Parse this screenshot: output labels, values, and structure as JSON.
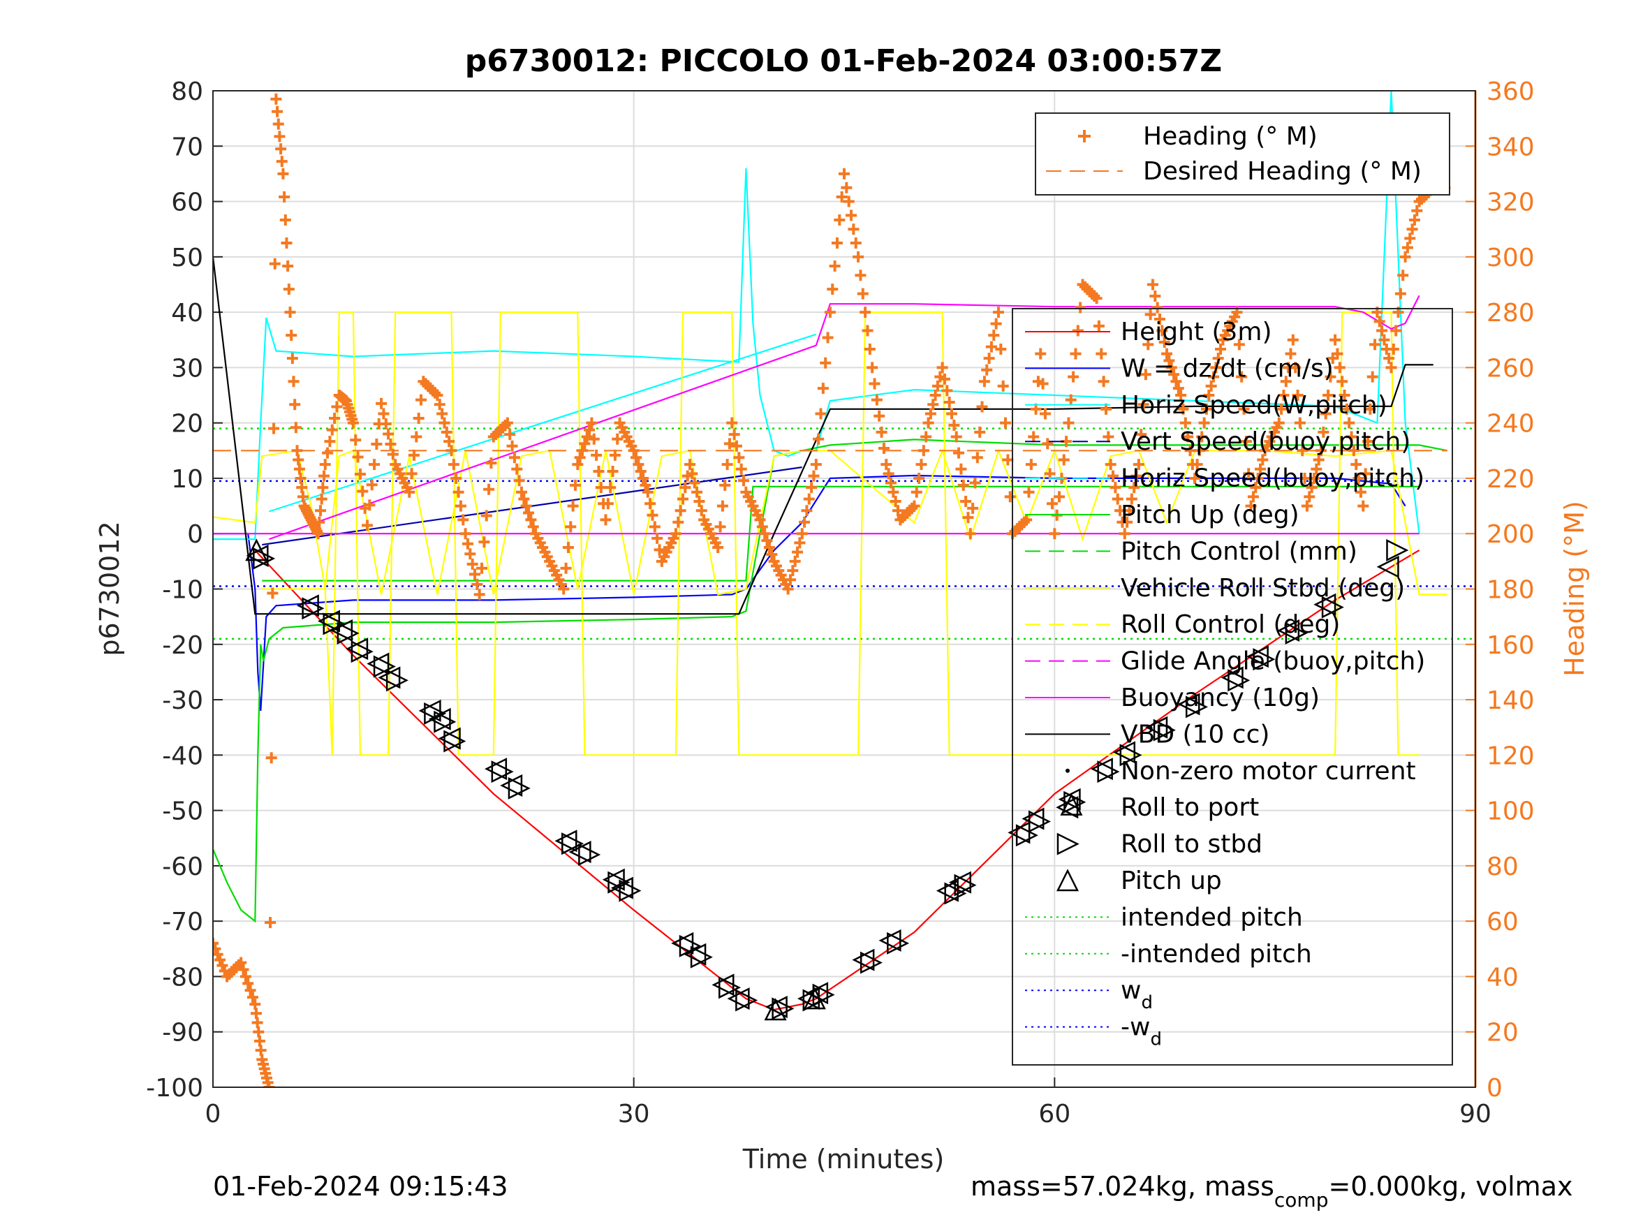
{
  "chart_data": {
    "type": "line",
    "title": "p6730012: PICCOLO 01-Feb-2024 03:00:57Z",
    "xlabel": "Time (minutes)",
    "ylabel_left": "p6730012",
    "ylabel_right": "Heading (°M)",
    "xlim": [
      0,
      90
    ],
    "ylim_left": [
      -100,
      80
    ],
    "ylim_right": [
      0,
      360
    ],
    "xticks": [
      "0",
      "30",
      "60",
      "90"
    ],
    "yticks_left": [
      "80",
      "70",
      "60",
      "50",
      "40",
      "30",
      "20",
      "10",
      "0",
      "-10",
      "-20",
      "-30",
      "-40",
      "-50",
      "-60",
      "-70",
      "-80",
      "-90",
      "-100"
    ],
    "yticks_right": [
      "360",
      "340",
      "320",
      "300",
      "280",
      "260",
      "240",
      "220",
      "200",
      "180",
      "160",
      "140",
      "120",
      "100",
      "80",
      "60",
      "40",
      "20",
      "0"
    ],
    "grid": true,
    "colors": {
      "orange": "#f47920",
      "red": "#ff0000",
      "blue": "#0000ff",
      "cyan": "#00ffff",
      "darkblue": "#0000aa",
      "green": "#00dd00",
      "yellow": "#ffff00",
      "magenta": "#ff00ff",
      "black": "#000000"
    },
    "legend_top": [
      {
        "label": "Heading (° M)",
        "color": "#f47920",
        "style": "plus"
      },
      {
        "label": "Desired Heading (° M)",
        "color": "#f47920",
        "style": "dash"
      }
    ],
    "legend_main": [
      {
        "label": "Height (3m)",
        "color": "#ff0000",
        "style": "solid"
      },
      {
        "label": "W = dz/dt (cm/s)",
        "color": "#0000ff",
        "style": "solid"
      },
      {
        "label": "Horiz Speed(W,pitch)",
        "color": "#00ffff",
        "style": "solid"
      },
      {
        "label": "Vert Speed(buoy,pitch)",
        "color": "#0000aa",
        "style": "dash"
      },
      {
        "label": "Horiz Speed(buoy,pitch)",
        "color": "#00ffff",
        "style": "dash"
      },
      {
        "label": "Pitch Up (deg)",
        "color": "#00dd00",
        "style": "solid"
      },
      {
        "label": "Pitch Control (mm)",
        "color": "#00dd00",
        "style": "dash"
      },
      {
        "label": "Vehicle Roll Stbd (deg)",
        "color": "#ffff00",
        "style": "solid"
      },
      {
        "label": "Roll Control (deg)",
        "color": "#ffff00",
        "style": "dash"
      },
      {
        "label": "Glide Angle (buoy,pitch)",
        "color": "#ff00ff",
        "style": "dash"
      },
      {
        "label": "Buoyancy (10g)",
        "color": "#ff00ff",
        "style": "solid"
      },
      {
        "label": "VBD (10 cc)",
        "color": "#000000",
        "style": "solid"
      },
      {
        "label": "Non-zero motor current",
        "color": "#000000",
        "style": "dot"
      },
      {
        "label": "Roll to port",
        "color": "#000000",
        "style": "tri-left"
      },
      {
        "label": "Roll to stbd",
        "color": "#000000",
        "style": "tri-right"
      },
      {
        "label": "Pitch up",
        "color": "#000000",
        "style": "tri-up"
      },
      {
        "label": "intended pitch",
        "color": "#00dd00",
        "style": "dotted"
      },
      {
        "label": "-intended pitch",
        "color": "#00dd00",
        "style": "dotted"
      },
      {
        "label": "w",
        "sub": "d",
        "color": "#0000ff",
        "style": "dotted"
      },
      {
        "label": "-w",
        "sub": "d",
        "color": "#0000ff",
        "style": "dotted"
      }
    ],
    "series": [
      {
        "name": "Height (3m)",
        "axis": "left",
        "color": "#ff0000",
        "x": [
          3,
          10,
          20,
          30,
          36,
          38,
          40,
          42,
          43,
          50,
          60,
          70,
          80,
          86
        ],
        "y": [
          -3,
          -22,
          -47,
          -68,
          -80,
          -84,
          -86,
          -85,
          -84,
          -72,
          -47,
          -29,
          -12,
          -3
        ]
      },
      {
        "name": "W = dz/dt (cm/s)",
        "axis": "left",
        "color": "#0000ff",
        "x": [
          0,
          2.5,
          3,
          3.2,
          3.4,
          3.8,
          4.5,
          10,
          20,
          30,
          37,
          38,
          40,
          42,
          44,
          50,
          60,
          70,
          80,
          84,
          85
        ],
        "y": [
          0,
          0,
          -10,
          -25,
          -32,
          -15,
          -13,
          -12,
          -12,
          -11.5,
          -11,
          -10,
          -3,
          2,
          10,
          10.5,
          10,
          10,
          10,
          9,
          5
        ]
      },
      {
        "name": "Horiz Speed(W,pitch)",
        "axis": "left",
        "color": "#00ffff",
        "x": [
          0,
          3,
          3.4,
          3.8,
          4.5,
          10,
          20,
          30,
          37.5,
          38,
          38.5,
          39,
          40,
          41,
          42,
          43,
          44,
          50,
          60,
          70,
          80,
          83,
          84,
          85,
          86
        ],
        "y": [
          -1,
          -1,
          20,
          39,
          33,
          32,
          33,
          32,
          31,
          66,
          38,
          25,
          15,
          14,
          15,
          15,
          24,
          26,
          25,
          24,
          23,
          20,
          80,
          20,
          0
        ]
      },
      {
        "name": "Vert Speed(buoy,pitch)",
        "axis": "left",
        "color": "#0000aa",
        "x": [
          3.5,
          42
        ],
        "y": [
          -2,
          12
        ]
      },
      {
        "name": "Horiz Speed(buoy,pitch)",
        "axis": "left",
        "color": "#00ffff",
        "x": [
          4,
          43
        ],
        "y": [
          4,
          36
        ]
      },
      {
        "name": "Pitch Up (deg)",
        "axis": "left",
        "color": "#00dd00",
        "x": [
          0,
          1,
          2,
          3,
          3.2,
          3.4,
          3.6,
          4,
          5,
          10,
          20,
          30,
          37,
          38,
          40,
          42,
          44,
          50,
          60,
          70,
          80,
          84,
          86,
          88
        ],
        "y": [
          -57,
          -63,
          -68,
          -70,
          -40,
          -20,
          -23,
          -19,
          -17,
          -16,
          -16,
          -15.5,
          -15,
          -14,
          14,
          15,
          16,
          17,
          16,
          16,
          16,
          16,
          16,
          15
        ]
      },
      {
        "name": "Pitch Control (mm)",
        "axis": "left",
        "color": "#00dd00",
        "x": [
          3.5,
          38,
          38.5,
          86
        ],
        "y": [
          -8.5,
          -8.5,
          8.5,
          8.5
        ]
      },
      {
        "name": "Vehicle Roll Stbd (deg)",
        "axis": "left",
        "color": "#ffff00",
        "x": [
          0,
          3,
          3.5,
          6,
          7,
          8,
          9,
          10,
          12,
          14,
          16,
          18,
          20,
          22,
          24,
          26,
          28,
          30,
          32,
          34,
          36,
          38,
          40,
          42,
          44,
          50,
          52,
          54,
          56,
          58,
          60,
          62,
          64,
          66,
          68,
          70,
          75,
          80,
          84,
          86,
          88
        ],
        "y": [
          3,
          2,
          14,
          15,
          5,
          -10,
          14,
          15,
          -11,
          14,
          -11,
          15,
          -11,
          14,
          15,
          -10,
          15,
          -11,
          14,
          15,
          -11,
          -10,
          14,
          15,
          15,
          2,
          15,
          -1,
          15,
          2,
          15,
          -1,
          14,
          15,
          2,
          15,
          15,
          14,
          15,
          -11,
          -11
        ]
      },
      {
        "name": "Roll Control (deg)",
        "axis": "left",
        "color": "#ffff00",
        "x": [
          3.5,
          8,
          8.5,
          9,
          10,
          10.5,
          12.5,
          13,
          17,
          17.5,
          20,
          20.5,
          26,
          26.5,
          33,
          33.5,
          37,
          37.5,
          46,
          46.5,
          52,
          52.5,
          80,
          80.5,
          84,
          84.5,
          86
        ],
        "y": [
          -10,
          -10,
          -40,
          40,
          40,
          -40,
          -40,
          40,
          40,
          -40,
          -40,
          40,
          40,
          -40,
          -40,
          40,
          40,
          -40,
          -40,
          40,
          40,
          -40,
          -40,
          40,
          40,
          -40,
          -40
        ]
      },
      {
        "name": "Glide Angle (buoy,pitch)",
        "axis": "left",
        "color": "#ff00ff",
        "x": [
          0,
          86
        ],
        "y": [
          0,
          0
        ]
      },
      {
        "name": "Buoyancy (10g)",
        "axis": "left",
        "color": "#ff00ff",
        "x": [
          4,
          43,
          44,
          50,
          60,
          70,
          80,
          82,
          84,
          85,
          86
        ],
        "y": [
          -1,
          34,
          41.5,
          41.5,
          41,
          41,
          41,
          40,
          37,
          38,
          43
        ]
      },
      {
        "name": "VBD (10 cc)",
        "axis": "left",
        "color": "#000000",
        "x": [
          0,
          3,
          4,
          37.5,
          40,
          44,
          60,
          70,
          84,
          85,
          87
        ],
        "y": [
          50,
          -14.5,
          -14.5,
          -14.5,
          0,
          22.5,
          22.5,
          23,
          23,
          30.5,
          30.5
        ]
      },
      {
        "name": "Heading (° M)",
        "axis": "right",
        "color": "#f47920",
        "marker": "plus",
        "x": [
          0,
          1,
          2,
          3,
          3.5,
          4,
          4.5,
          5,
          5.5,
          6,
          6.5,
          7,
          7.5,
          8,
          9,
          9.5,
          10,
          11,
          12,
          13,
          14,
          15,
          16,
          17,
          18,
          19,
          20,
          21,
          22,
          23,
          24,
          25,
          26,
          27,
          28,
          29,
          30,
          31,
          32,
          33,
          34,
          35,
          36,
          37,
          38,
          39,
          40,
          41,
          42,
          43,
          44,
          45,
          46,
          47,
          48,
          49,
          50,
          51,
          52,
          53,
          54,
          55,
          56,
          57,
          58,
          59,
          60,
          61,
          62,
          63,
          64,
          65,
          66,
          67,
          68,
          69,
          70,
          71,
          72,
          73,
          74,
          75,
          76,
          77,
          78,
          79,
          80,
          81,
          82,
          83,
          84,
          85,
          86,
          87,
          88
        ],
        "y": [
          52,
          40,
          45,
          30,
          10,
          0,
          357,
          330,
          280,
          230,
          210,
          205,
          200,
          225,
          250,
          248,
          240,
          203,
          247,
          225,
          215,
          255,
          250,
          230,
          200,
          178,
          235,
          240,
          215,
          200,
          190,
          180,
          225,
          240,
          205,
          240,
          230,
          215,
          190,
          200,
          225,
          205,
          195,
          240,
          215,
          205,
          190,
          180,
          200,
          225,
          280,
          330,
          300,
          260,
          225,
          205,
          210,
          240,
          260,
          235,
          200,
          255,
          280,
          200,
          205,
          265,
          200,
          240,
          290,
          285,
          225,
          200,
          225,
          290,
          265,
          250,
          220,
          250,
          270,
          280,
          210,
          230,
          240,
          270,
          210,
          230,
          270,
          240,
          210,
          280,
          260,
          300,
          320,
          325,
          325
        ]
      },
      {
        "name": "Desired Heading (° M)",
        "axis": "right",
        "color": "#f47920",
        "style": "dash",
        "x": [
          0,
          88
        ],
        "y": [
          230,
          230
        ]
      }
    ],
    "reference_lines": [
      {
        "name": "intended pitch",
        "y": 19,
        "color": "#00dd00"
      },
      {
        "name": "-intended pitch",
        "y": -19,
        "color": "#00dd00"
      },
      {
        "name": "w_d",
        "y": 9.5,
        "color": "#0000ff"
      },
      {
        "name": "-w_d",
        "y": -9.5,
        "color": "#0000ff"
      }
    ],
    "markers": {
      "roll_port": {
        "x": [
          3.2,
          6.8,
          8.3,
          9.2,
          10.3,
          11.8,
          12.6,
          15.5,
          16.2,
          16.9,
          20.2,
          21.3,
          25.2,
          26.2,
          28.6,
          29.2,
          33.5,
          34.4,
          36.4,
          37.5,
          40.2,
          42.5,
          43.1,
          46.4,
          48.3,
          52.4,
          53.3,
          57.5,
          58.5,
          61.1,
          63.4,
          65,
          67.3,
          69.6,
          72.7,
          74.5,
          76.7,
          79.3,
          83.8
        ],
        "y": [
          -4,
          -13,
          -15.8,
          -17.5,
          -20.8,
          -23.5,
          -26,
          -32,
          -33.5,
          -37,
          -42.5,
          -45.5,
          -55.5,
          -57.5,
          -62.5,
          -64,
          -74,
          -76,
          -81.5,
          -84,
          -85.5,
          -84,
          -83,
          -77,
          -73.5,
          -64.5,
          -63,
          -54,
          -51.5,
          -48,
          -42.5,
          -39.5,
          -35,
          -30.8,
          -26,
          -22.2,
          -17.5,
          -12.8,
          -6
        ]
      },
      "roll_stbd": {
        "x": [
          3.6,
          7.1,
          8.6,
          9.6,
          10.6,
          12.2,
          13.1,
          15.8,
          16.5,
          17.2,
          20.6,
          21.8,
          25.6,
          26.8,
          28.9,
          29.7,
          34,
          34.8,
          36.8,
          38,
          40.6,
          42.8,
          43.5,
          46.9,
          48.8,
          52.9,
          53.6,
          58,
          58.9,
          61.4,
          63.8,
          65.4,
          67.8,
          70.1,
          73.1,
          74.9,
          77.2,
          79.8,
          84.4
        ],
        "y": [
          -4.5,
          -13.5,
          -16.3,
          -18,
          -21.3,
          -24,
          -26.5,
          -32.5,
          -34,
          -37.5,
          -43,
          -46,
          -56,
          -58,
          -63,
          -64.5,
          -74.5,
          -76.5,
          -82,
          -84.3,
          -85.8,
          -84.3,
          -83.3,
          -77.5,
          -74,
          -65,
          -63.5,
          -54.5,
          -52,
          -48.5,
          -43,
          -40,
          -35.5,
          -31.3,
          -26.5,
          -22.7,
          -18,
          -13.3,
          -3
        ]
      },
      "pitch_up": {
        "x": [
          3.1,
          40.1,
          42.9,
          61.2
        ],
        "y": [
          -3,
          -86,
          -84,
          -49
        ]
      }
    }
  },
  "footer": {
    "timestamp": "01-Feb-2024 09:15:43",
    "mass_prefix": "mass=57.024kg, mass",
    "mass_sub": "comp",
    "mass_suffix": "=0.000kg, volmax"
  }
}
